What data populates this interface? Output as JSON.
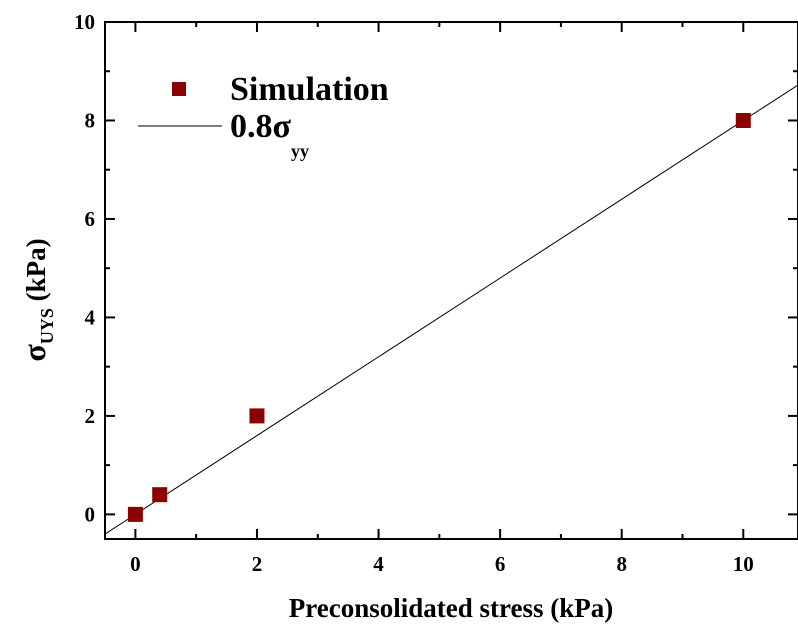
{
  "chart_data": {
    "type": "scatter",
    "xlabel": "Preconsolidated stress (kPa)",
    "ylabel": {
      "symbol": "σ",
      "subscript": "UYS",
      "unit": "(kPa)"
    },
    "xlim": [
      -0.5,
      10.9
    ],
    "ylim": [
      -0.5,
      10
    ],
    "x_ticks": [
      0,
      2,
      4,
      6,
      8,
      10
    ],
    "y_ticks": [
      0,
      2,
      4,
      6,
      8,
      10
    ],
    "grid": false,
    "legend_position": "top-left",
    "series": [
      {
        "name": "Simulation",
        "kind": "markers",
        "marker": "square",
        "color": "#8b0000",
        "x": [
          0,
          0.4,
          2,
          10
        ],
        "y": [
          0,
          0.4,
          2,
          8
        ]
      },
      {
        "name": {
          "main": "0.8σ",
          "subscript": "yy"
        },
        "kind": "line",
        "color": "#000000",
        "slope": 0.8,
        "intercept": 0
      }
    ]
  }
}
